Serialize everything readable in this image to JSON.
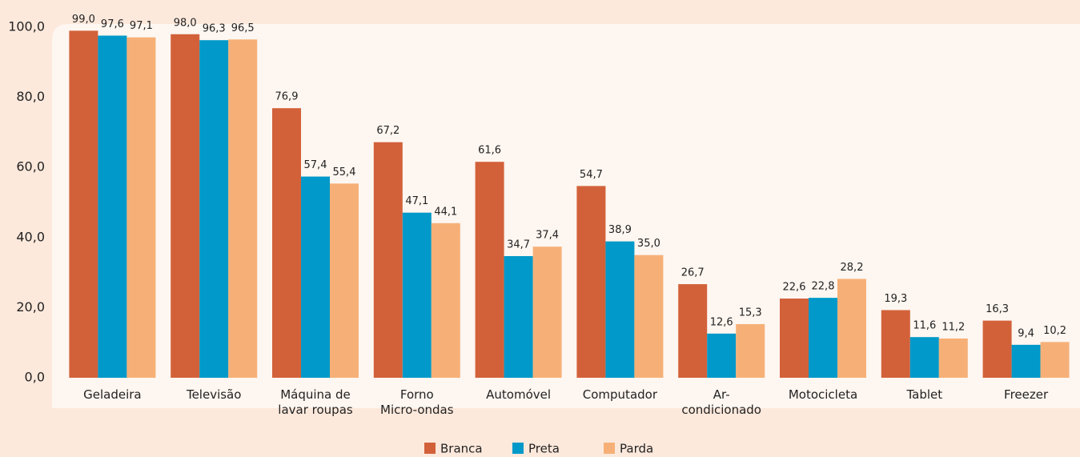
{
  "chart_data": {
    "type": "bar",
    "categories": [
      "Geladeira",
      "Televisão",
      "Máquina de\nlavar roupas",
      "Forno\nMicro-ondas",
      "Automóvel",
      "Computador",
      "Ar-\ncondicionado",
      "Motocicleta",
      "Tablet",
      "Freezer"
    ],
    "series": [
      {
        "name": "Branca",
        "color": "#d2613a",
        "values": [
          99.0,
          98.0,
          76.9,
          67.2,
          61.6,
          54.7,
          26.7,
          22.6,
          19.3,
          16.3
        ],
        "value_labels": [
          "99,0",
          "98,0",
          "76,9",
          "67,2",
          "61,6",
          "54,7",
          "26,7",
          "22,6",
          "19,3",
          "16,3"
        ]
      },
      {
        "name": "Preta",
        "color": "#0099c9",
        "values": [
          97.6,
          96.3,
          57.4,
          47.1,
          34.7,
          38.9,
          12.6,
          22.8,
          11.6,
          9.4
        ],
        "value_labels": [
          "97,6",
          "96,3",
          "57,4",
          "47,1",
          "34,7",
          "38,9",
          "12,6",
          "22,8",
          "11,6",
          "9,4"
        ]
      },
      {
        "name": "Parda",
        "color": "#f6b077",
        "values": [
          97.1,
          96.5,
          55.4,
          44.1,
          37.4,
          35.0,
          15.3,
          28.2,
          11.2,
          10.2
        ],
        "value_labels": [
          "97,1",
          "96,5",
          "55,4",
          "44,1",
          "37,4",
          "35,0",
          "15,3",
          "28,2",
          "11,2",
          "10,2"
        ]
      }
    ],
    "ylim": [
      0,
      100
    ],
    "yticks": [
      {
        "value": 0,
        "label": "0,0"
      },
      {
        "value": 20,
        "label": "20,0"
      },
      {
        "value": 40,
        "label": "40,0"
      },
      {
        "value": 60,
        "label": "60,0"
      },
      {
        "value": 80,
        "label": "80,0"
      },
      {
        "value": 100,
        "label": "100,0"
      }
    ],
    "grid": false,
    "legend": "bottom"
  }
}
